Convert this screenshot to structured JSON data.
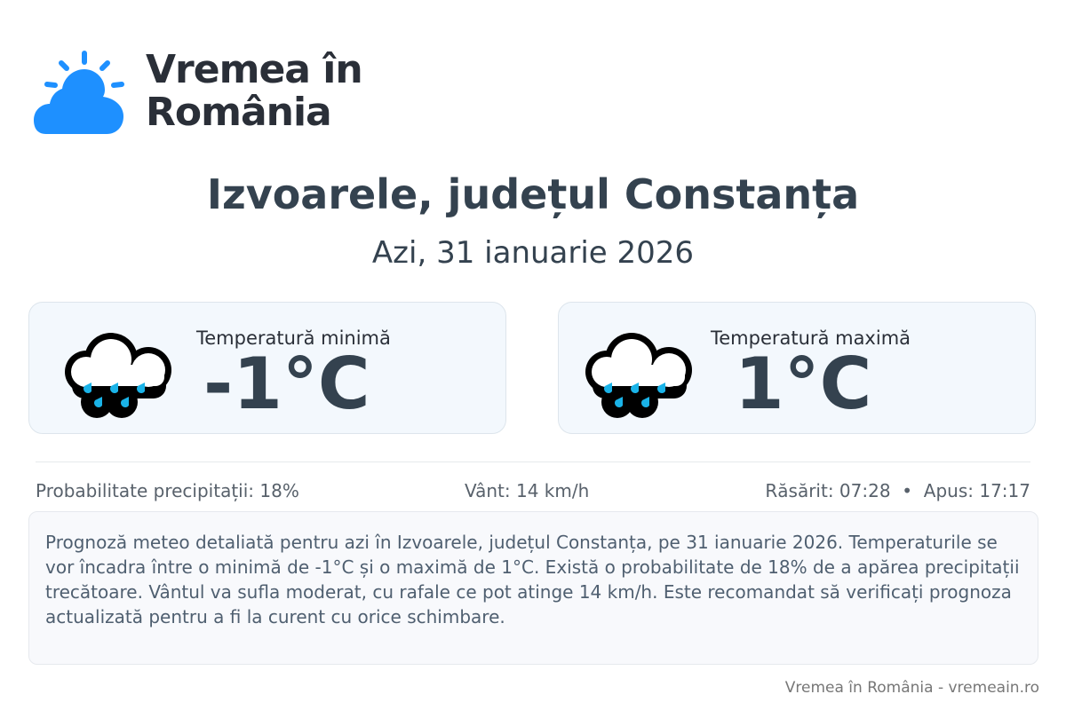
{
  "logo": {
    "line1": "Vremea în",
    "line2": "România",
    "color": "#1e90ff"
  },
  "title": "Izvoarele, județul Constanța",
  "date": "Azi, 31 ianuarie 2026",
  "cards": [
    {
      "label": "Temperatură minimă",
      "value": "-1°C",
      "icon": "rain-cloud-icon"
    },
    {
      "label": "Temperatură maximă",
      "value": "1°C",
      "icon": "rain-cloud-icon"
    }
  ],
  "stats": {
    "precipitation": "Probabilitate precipitații: 18%",
    "wind": "Vânt: 14 km/h",
    "sun": "Răsărit: 07:28  •  Apus: 17:17"
  },
  "description": "Prognoză meteo detaliată pentru azi în Izvoarele, județul Constanța, pe 31 ianuarie 2026. Temperaturile se vor încadra între o minimă de -1°C și o maximă de 1°C. Există o probabilitate de 18% de a apărea precipitații trecătoare. Vântul va sufla moderat, cu rafale ce pot atinge 14 km/h. Este recomandat să verificați prognoza actualizată pentru a fi la curent cu orice schimbare.",
  "footer": "Vremea în România - vremeain.ro"
}
